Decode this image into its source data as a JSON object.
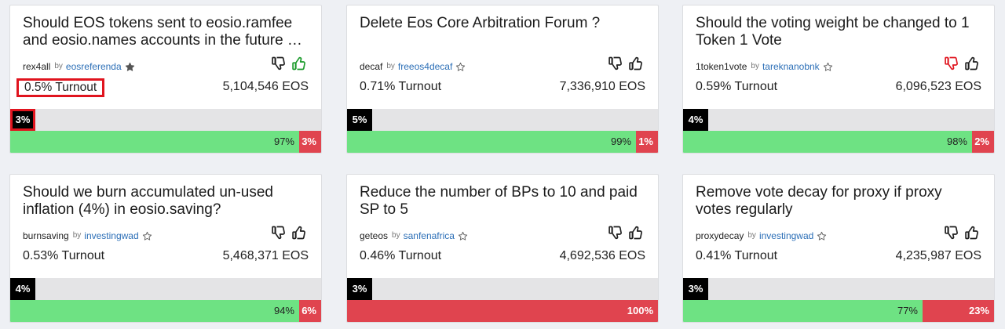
{
  "cards": [
    {
      "title": "Should EOS tokens sent to eosio.ramfee\nand eosio.names accounts in the future …",
      "proposal": "rex4all",
      "by": "by",
      "author": "eosreferenda",
      "starred": true,
      "thumb_up_active": true,
      "thumb_down_active": false,
      "turnout": "0.5% Turnout",
      "amount": "5,104,546 EOS",
      "participation_label": "3%",
      "participation": 0.03,
      "yes_label": "97%",
      "no_label": "3%",
      "yes_pct": 97,
      "no_pct": 3
    },
    {
      "title": "Delete Eos Core Arbitration Forum ?",
      "proposal": "decaf",
      "by": "by",
      "author": "freeos4decaf",
      "starred": false,
      "thumb_up_active": false,
      "thumb_down_active": false,
      "turnout": "0.71% Turnout",
      "amount": "7,336,910 EOS",
      "participation_label": "5%",
      "participation": 0.05,
      "yes_label": "99%",
      "no_label": "1%",
      "yes_pct": 99,
      "no_pct": 1
    },
    {
      "title": "Should the voting weight be changed to 1\nToken 1 Vote",
      "proposal": "1token1vote",
      "by": "by",
      "author": "tareknanobnk",
      "starred": false,
      "thumb_up_active": false,
      "thumb_down_active": true,
      "turnout": "0.59% Turnout",
      "amount": "6,096,523 EOS",
      "participation_label": "4%",
      "participation": 0.04,
      "yes_label": "98%",
      "no_label": "2%",
      "yes_pct": 98,
      "no_pct": 2
    },
    {
      "title": "Should we burn accumulated un-used\ninflation (4%) in eosio.saving?",
      "proposal": "burnsaving",
      "by": "by",
      "author": "investingwad",
      "starred": false,
      "thumb_up_active": false,
      "thumb_down_active": false,
      "turnout": "0.53% Turnout",
      "amount": "5,468,371 EOS",
      "participation_label": "4%",
      "participation": 0.04,
      "yes_label": "94%",
      "no_label": "6%",
      "yes_pct": 94,
      "no_pct": 6
    },
    {
      "title": "Reduce the number of BPs to 10 and paid\nSP to 5",
      "proposal": "geteos",
      "by": "by",
      "author": "sanfenafrica",
      "starred": false,
      "thumb_up_active": false,
      "thumb_down_active": false,
      "turnout": "0.46% Turnout",
      "amount": "4,692,536 EOS",
      "participation_label": "3%",
      "participation": 0.03,
      "yes_label": "",
      "no_label": "100%",
      "yes_pct": 0,
      "no_pct": 100
    },
    {
      "title": "Remove vote decay for proxy if proxy\nvotes regularly",
      "proposal": "proxydecay",
      "by": "by",
      "author": "investingwad",
      "starred": false,
      "thumb_up_active": false,
      "thumb_down_active": false,
      "turnout": "0.41% Turnout",
      "amount": "4,235,987 EOS",
      "participation_label": "3%",
      "participation": 0.03,
      "yes_label": "77%",
      "no_label": "23%",
      "yes_pct": 77,
      "no_pct": 23
    }
  ],
  "colors": {
    "yes": "#6ee283",
    "no": "#e0444f",
    "participation": "#000000",
    "highlight": "#e0141e",
    "author_link": "#2c6fb7",
    "thumb_up_active": "#1a9a2a",
    "thumb_down_active": "#e0141e"
  },
  "highlighted_card": 0
}
